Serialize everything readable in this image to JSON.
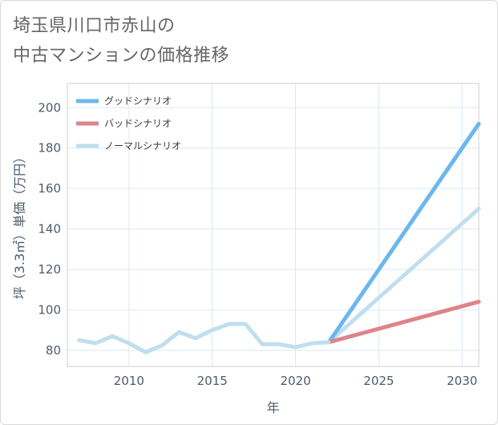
{
  "title_lines": [
    "埼玉県川口市赤山の",
    "中古マンションの価格推移"
  ],
  "chart_data": {
    "type": "line",
    "title": "埼玉県川口市赤山の中古マンションの価格推移",
    "xlabel": "年",
    "ylabel": "坪（3.3㎡）単価（万円）",
    "xlim": [
      2006.3,
      2031
    ],
    "ylim": [
      72,
      212
    ],
    "x_ticks": [
      2010,
      2015,
      2020,
      2025,
      2030
    ],
    "y_ticks": [
      80,
      100,
      120,
      140,
      160,
      180,
      200
    ],
    "grid": true,
    "legend_position": "top-left",
    "historical": {
      "x": [
        2007,
        2008,
        2009,
        2010,
        2011,
        2012,
        2013,
        2014,
        2015,
        2016,
        2017,
        2018,
        2019,
        2020,
        2021,
        2022
      ],
      "y": [
        85,
        83.5,
        87,
        83.5,
        79,
        82.5,
        89,
        86,
        90,
        93,
        93,
        83,
        83,
        81.5,
        83.5,
        84
      ]
    },
    "series": [
      {
        "name": "グッドシナリオ",
        "color": "#6bb7ee",
        "x": [
          2022,
          2031
        ],
        "y": [
          84,
          192
        ]
      },
      {
        "name": "バッドシナリオ",
        "color": "#dd848a",
        "x": [
          2022,
          2031
        ],
        "y": [
          84,
          104
        ]
      },
      {
        "name": "ノーマルシナリオ",
        "color": "#bfdfee",
        "x": [
          2022,
          2031
        ],
        "y": [
          84,
          150
        ]
      }
    ]
  }
}
